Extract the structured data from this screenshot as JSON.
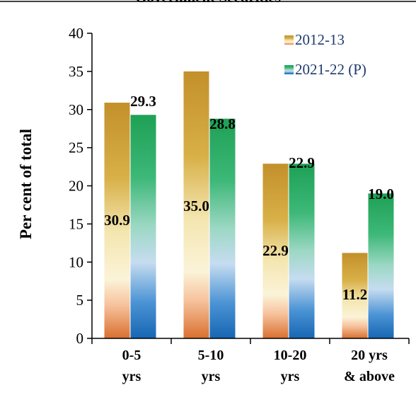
{
  "chart_data": {
    "type": "bar",
    "title": "Government Securities",
    "ylabel": "Per cent of total",
    "xlabel": "",
    "ylim": [
      0,
      40
    ],
    "yticks": [
      0,
      5,
      10,
      15,
      20,
      25,
      30,
      35,
      40
    ],
    "categories": [
      [
        "0-5",
        "yrs"
      ],
      [
        "5-10",
        "yrs"
      ],
      [
        "10-20",
        "yrs"
      ],
      [
        "20 yrs",
        "& above"
      ]
    ],
    "series": [
      {
        "name": "2012-13",
        "values": [
          30.9,
          35.0,
          22.9,
          11.2
        ],
        "labels": [
          "30.9",
          "35.0",
          "22.9",
          "11.2"
        ]
      },
      {
        "name": "2021-22 (P)",
        "values": [
          29.3,
          28.8,
          22.9,
          19.0
        ],
        "labels": [
          "29.3",
          "28.8",
          "22.9",
          "19.0"
        ]
      }
    ],
    "legend_position": "top-right",
    "grid": false,
    "colors": {
      "series_1_gradient": [
        "#c8962a",
        "#e2c25a",
        "#f6efc8",
        "#f3b48a",
        "#d9733a"
      ],
      "series_2_gradient": [
        "#1fa35a",
        "#7cd0b0",
        "#b9d5ee",
        "#4b97d8",
        "#1b6cb8"
      ]
    }
  }
}
